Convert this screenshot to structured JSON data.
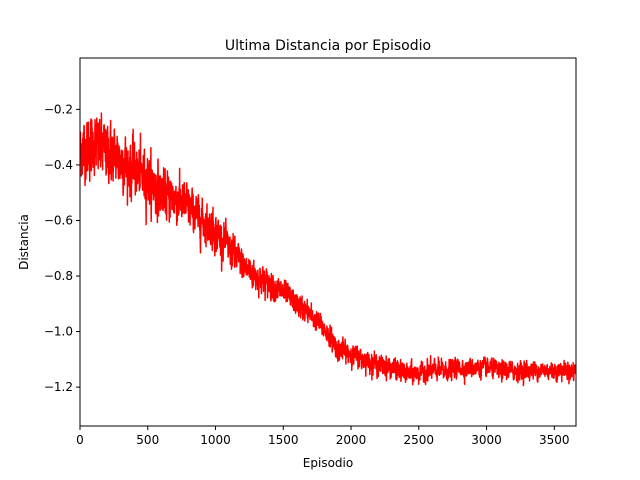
{
  "chart_data": {
    "type": "line",
    "title": "Ultima Distancia por Episodio",
    "xlabel": "Episodio",
    "ylabel": "Distancia",
    "xlim": [
      0,
      3660
    ],
    "ylim": [
      -1.34,
      -0.015
    ],
    "xticks": [
      0,
      500,
      1000,
      1500,
      2000,
      2500,
      3000,
      3500
    ],
    "yticks": [
      -1.2,
      -1.0,
      -0.8,
      -0.6,
      -0.4,
      -0.2
    ],
    "ytick_labels": [
      "−1.2",
      "−1.0",
      "−0.8",
      "−0.6",
      "−0.4",
      "−0.2"
    ],
    "grid": false,
    "legend": "none",
    "series": [
      {
        "color": "#ff0000",
        "trend": {
          "x": [
            0,
            100,
            200,
            300,
            400,
            500,
            600,
            700,
            800,
            900,
            1000,
            1100,
            1200,
            1300,
            1400,
            1500,
            1600,
            1700,
            1800,
            1900,
            2000,
            2100,
            2200,
            2300,
            2400,
            2500,
            2600,
            2700,
            2800,
            2900,
            3000,
            3100,
            3200,
            3300,
            3400,
            3500,
            3660
          ],
          "y": [
            -0.35,
            -0.33,
            -0.35,
            -0.38,
            -0.42,
            -0.45,
            -0.5,
            -0.52,
            -0.55,
            -0.6,
            -0.64,
            -0.7,
            -0.76,
            -0.8,
            -0.83,
            -0.86,
            -0.9,
            -0.94,
            -0.99,
            -1.06,
            -1.08,
            -1.1,
            -1.12,
            -1.13,
            -1.15,
            -1.15,
            -1.14,
            -1.14,
            -1.13,
            -1.13,
            -1.13,
            -1.14,
            -1.14,
            -1.14,
            -1.14,
            -1.14,
            -1.14
          ]
        },
        "noise": {
          "x": [
            0,
            500,
            1000,
            1500,
            1800,
            2000,
            2500,
            3000,
            3660
          ],
          "amplitude": [
            0.15,
            0.13,
            0.09,
            0.06,
            0.05,
            0.05,
            0.05,
            0.045,
            0.045
          ]
        }
      }
    ]
  }
}
